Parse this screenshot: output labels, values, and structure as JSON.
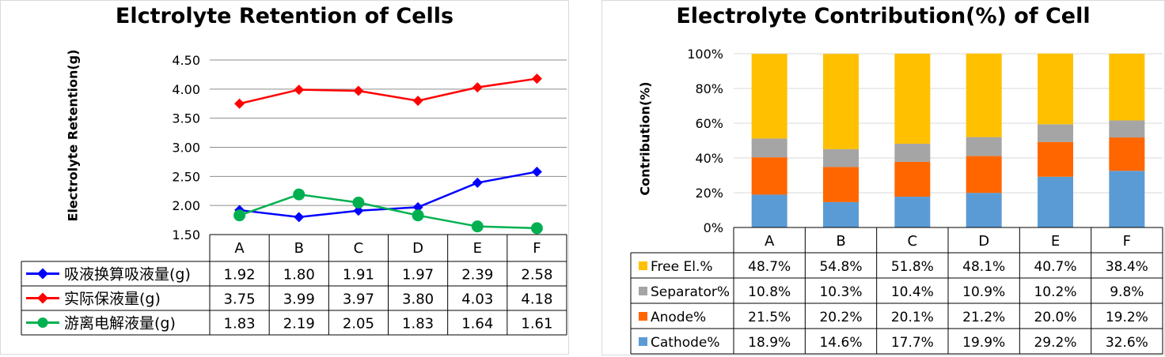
{
  "chart_data": [
    {
      "type": "line",
      "title": "Elctrolyte Retention of Cells",
      "ylabel": "Electrolyte Retention(g)",
      "xlabel": "",
      "categories": [
        "A",
        "B",
        "C",
        "D",
        "E",
        "F"
      ],
      "ylim": [
        1.5,
        4.5
      ],
      "ytick_step": 0.5,
      "ytick_labels": [
        "1.50",
        "2.00",
        "2.50",
        "3.00",
        "3.50",
        "4.00",
        "4.50"
      ],
      "grid": true,
      "legend": "data-table-left",
      "series": [
        {
          "name": "吸液换算吸液量(g)",
          "color": "#0000ff",
          "marker": "diamond",
          "values": [
            1.92,
            1.8,
            1.91,
            1.97,
            2.39,
            2.58
          ],
          "labels": [
            "1.92",
            "1.80",
            "1.91",
            "1.97",
            "2.39",
            "2.58"
          ]
        },
        {
          "name": "实际保液量(g)",
          "color": "#ff0000",
          "marker": "diamond",
          "values": [
            3.75,
            3.99,
            3.97,
            3.8,
            4.03,
            4.18
          ],
          "labels": [
            "3.75",
            "3.99",
            "3.97",
            "3.80",
            "4.03",
            "4.18"
          ]
        },
        {
          "name": "游离电解液量(g)",
          "color": "#00b050",
          "marker": "circle",
          "values": [
            1.83,
            2.19,
            2.05,
            1.83,
            1.64,
            1.61
          ],
          "labels": [
            "1.83",
            "2.19",
            "2.05",
            "1.83",
            "1.64",
            "1.61"
          ]
        }
      ]
    },
    {
      "type": "bar",
      "stacked": true,
      "title": "Electrolyte  Contribution(%) of Cell",
      "ylabel": "Contribution(%)",
      "xlabel": "",
      "categories": [
        "A",
        "B",
        "C",
        "D",
        "E",
        "F"
      ],
      "ylim": [
        0,
        100
      ],
      "ytick_labels": [
        "0%",
        "20%",
        "40%",
        "60%",
        "80%",
        "100%"
      ],
      "grid": true,
      "legend": "data-table-left",
      "series": [
        {
          "name": "Free El.%",
          "color": "#ffc000",
          "values": [
            48.7,
            54.8,
            51.8,
            48.1,
            40.7,
            38.4
          ],
          "labels": [
            "48.7%",
            "54.8%",
            "51.8%",
            "48.1%",
            "40.7%",
            "38.4%"
          ]
        },
        {
          "name": "Separator%",
          "color": "#a5a5a5",
          "values": [
            10.8,
            10.3,
            10.4,
            10.9,
            10.2,
            9.8
          ],
          "labels": [
            "10.8%",
            "10.3%",
            "10.4%",
            "10.9%",
            "10.2%",
            "9.8%"
          ]
        },
        {
          "name": "Anode%",
          "color": "#ff6600",
          "values": [
            21.5,
            20.2,
            20.1,
            21.2,
            20.0,
            19.2
          ],
          "labels": [
            "21.5%",
            "20.2%",
            "20.1%",
            "21.2%",
            "20.0%",
            "19.2%"
          ]
        },
        {
          "name": "Cathode%",
          "color": "#5b9bd5",
          "values": [
            18.9,
            14.6,
            17.7,
            19.9,
            29.2,
            32.6
          ],
          "labels": [
            "18.9%",
            "14.6%",
            "17.7%",
            "19.9%",
            "29.2%",
            "32.6%"
          ]
        }
      ],
      "stack_order_bottom_to_top": [
        "Cathode%",
        "Anode%",
        "Separator%",
        "Free El.%"
      ]
    }
  ]
}
